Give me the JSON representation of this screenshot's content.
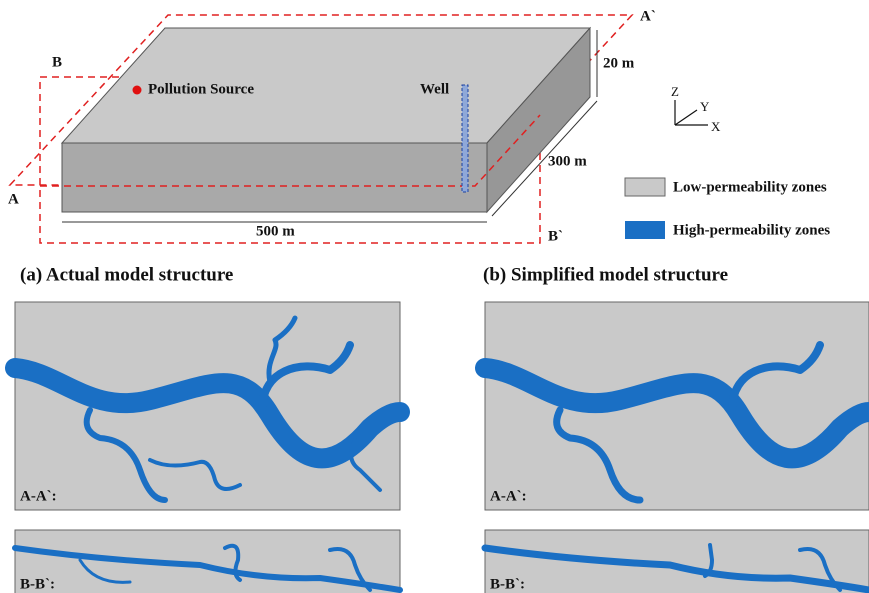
{
  "model": {
    "section_a_end": "A`",
    "section_b_start": "B",
    "height": "20 m",
    "source": "Pollution Source",
    "well": "Well",
    "width": "300 m",
    "section_a_start": "A",
    "section_b_end": "B`",
    "length": "500 m"
  },
  "axes": {
    "z": "Z",
    "y": "Y",
    "x": "X"
  },
  "legend": [
    {
      "label": "Low-permeability zones"
    },
    {
      "label": "High-permeability zones"
    }
  ],
  "panels": [
    {
      "title": "(a) Actual model structure",
      "sections": [
        "A-A`:",
        "B-B`:"
      ]
    },
    {
      "title": "(b) Simplified model structure",
      "sections": [
        "A-A`:",
        "B-B`:"
      ]
    }
  ]
}
